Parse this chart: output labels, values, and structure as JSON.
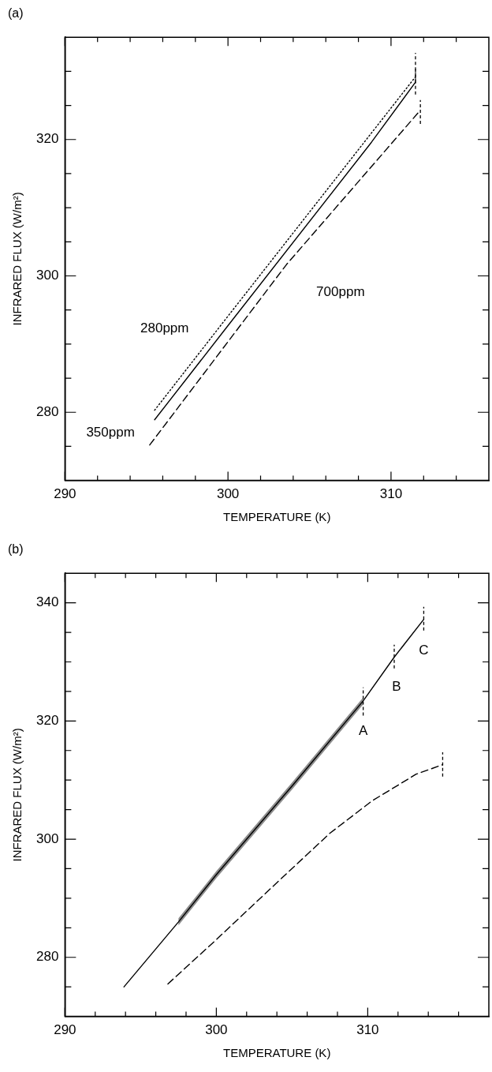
{
  "chart_data": [
    {
      "type": "line",
      "title": "(a)",
      "xlabel": "TEMPERATURE (K)",
      "ylabel": "INFRARED FLUX (W/m²)",
      "xlim": [
        290,
        316
      ],
      "ylim": [
        270,
        335
      ],
      "xticks": [
        290,
        {
          "value": 292,
          "label": null
        },
        {
          "value": 294,
          "label": null
        },
        {
          "value": 296,
          "label": null
        },
        {
          "value": 298,
          "label": null
        },
        300,
        {
          "value": 302,
          "label": null
        },
        {
          "value": 304,
          "label": null
        },
        {
          "value": 306,
          "label": null
        },
        {
          "value": 308,
          "label": null
        },
        310,
        {
          "value": 312,
          "label": null
        },
        {
          "value": 314,
          "label": null
        }
      ],
      "yticks": [
        {
          "value": 275,
          "label": null
        },
        280,
        {
          "value": 285,
          "label": null
        },
        {
          "value": 290,
          "label": null
        },
        {
          "value": 295,
          "label": null
        },
        300,
        {
          "value": 305,
          "label": null
        },
        {
          "value": 310,
          "label": null
        },
        {
          "value": 315,
          "label": null
        },
        320,
        {
          "value": 325,
          "label": null
        },
        {
          "value": 330,
          "label": null
        }
      ],
      "marker": "none",
      "series": [
        {
          "color": "#000000",
          "line_style": "dotted",
          "x": [
            295.5,
            300,
            311.5
          ],
          "values": [
            280.3,
            294.1,
            329.2
          ],
          "errors": [
            null,
            null,
            [
              328.5,
              332.7
            ]
          ]
        },
        {
          "color": "#000000",
          "line_style": "solid",
          "x": [
            295.5,
            300,
            308.8,
            311.5
          ],
          "values": [
            278.9,
            292.7,
            319.6,
            328.4
          ],
          "errors": [
            null,
            null,
            null,
            [
              326.6,
              330.5
            ]
          ]
        },
        {
          "color": "#000000",
          "line_style": "dashed",
          "x": [
            295.2,
            303.6,
            311.8
          ],
          "values": [
            275.2,
            301.7,
            324.3
          ],
          "errors": [
            null,
            null,
            [
              322.3,
              325.8
            ]
          ]
        }
      ],
      "annotations": [
        {
          "text": "280ppm",
          "x": 299.4,
          "y": 292.3
        },
        {
          "text": "350ppm",
          "x": 295.5,
          "y": 278.9
        },
        "700ppm"
      ]
    },
    {
      "type": "line",
      "title": "(b)",
      "xlabel": "TEMPERATURE (K)",
      "ylabel": "INFRARED FLUX (W/m²)",
      "xlim": [
        290,
        318
      ],
      "ylim": [
        270,
        345
      ],
      "xticks": [
        290,
        {
          "value": 292,
          "label": null
        },
        {
          "value": 294,
          "label": null
        },
        {
          "value": 296,
          "label": null
        },
        {
          "value": 298,
          "label": null
        },
        300,
        {
          "value": 302,
          "label": null
        },
        {
          "value": 304,
          "label": null
        },
        {
          "value": 306,
          "label": null
        },
        {
          "value": 308,
          "label": null
        },
        310,
        {
          "value": 312,
          "label": null
        },
        {
          "value": 314,
          "label": null
        },
        {
          "value": 316,
          "label": null
        }
      ],
      "yticks": [
        {
          "value": 275,
          "label": null
        },
        280,
        {
          "value": 285,
          "label": null
        },
        {
          "value": 290,
          "label": null
        },
        {
          "value": 295,
          "label": null
        },
        300,
        {
          "value": 305,
          "label": null
        },
        {
          "value": 310,
          "label": null
        },
        {
          "value": 315,
          "label": null
        },
        320,
        {
          "value": 325,
          "label": null
        },
        {
          "value": 330,
          "label": null
        },
        {
          "value": 335,
          "label": null
        },
        340
      ],
      "marker": "none",
      "series": [
        {
          "color": "#000000",
          "line_style": "solid",
          "x": [
            293.9,
            297.5,
            300,
            305,
            309.7,
            311.75,
            313.7
          ],
          "values": [
            275,
            286,
            294,
            309,
            323.4,
            330.8,
            337.2
          ],
          "errors": [
            null,
            null,
            null,
            null,
            [
              320.9,
              325.7
            ],
            [
              328.9,
              332.9
            ],
            [
              335.3,
              339.3
            ]
          ],
          "lower": [
            null,
            285.4,
            293.4,
            308.4,
            322.8,
            null,
            null
          ],
          "upper": [
            null,
            286.6,
            294.6,
            309.6,
            324,
            null,
            null
          ]
        },
        {
          "color": "#000000",
          "line_style": "dashed",
          "x": [
            296.8,
            300,
            303.9,
            307.5,
            310.3,
            313.2,
            314.95
          ],
          "values": [
            275.5,
            283,
            292.4,
            301,
            306.5,
            311,
            312.6
          ],
          "errors": [
            null,
            null,
            null,
            null,
            null,
            null,
            [
              310.6,
              314.7
            ]
          ]
        }
      ],
      "annotations": [
        {
          "text": "A",
          "x": 309.7,
          "y": 323.4
        },
        {
          "text": "B",
          "x": 311.75,
          "y": 330.8
        },
        {
          "text": "C",
          "x": 313.7,
          "y": 337.2
        }
      ]
    }
  ]
}
